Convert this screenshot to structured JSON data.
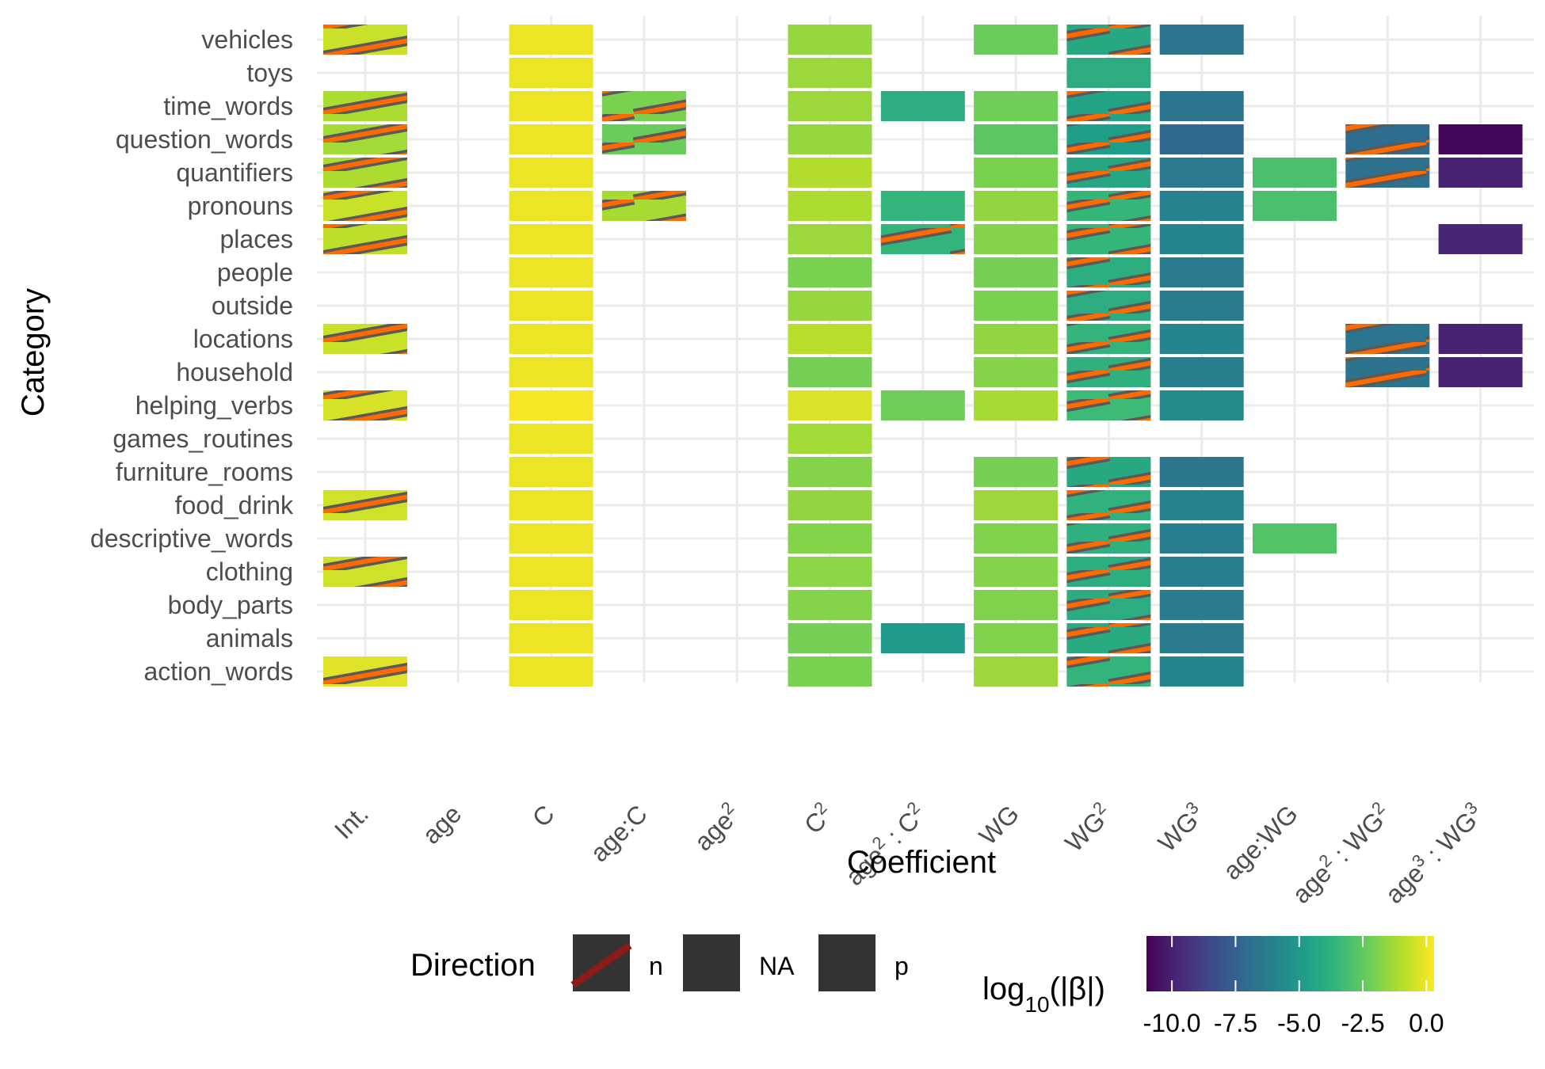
{
  "chart_data": {
    "type": "heatmap",
    "xlabel": "Coefficient",
    "ylabel": "Category",
    "x_categories": [
      {
        "key": "int",
        "parts": [
          {
            "t": "Int."
          }
        ]
      },
      {
        "key": "age",
        "parts": [
          {
            "t": "age"
          }
        ]
      },
      {
        "key": "C",
        "parts": [
          {
            "t": "C"
          }
        ]
      },
      {
        "key": "age:C",
        "parts": [
          {
            "t": "age:C"
          }
        ]
      },
      {
        "key": "age2",
        "parts": [
          {
            "t": "age"
          },
          {
            "t": "2",
            "sup": true
          }
        ]
      },
      {
        "key": "C2",
        "parts": [
          {
            "t": "C"
          },
          {
            "t": "2",
            "sup": true
          }
        ]
      },
      {
        "key": "age2:C2",
        "parts": [
          {
            "t": "age"
          },
          {
            "t": "2",
            "sup": true
          },
          {
            "t": " : C"
          },
          {
            "t": "2",
            "sup": true
          }
        ]
      },
      {
        "key": "WG",
        "parts": [
          {
            "t": "WG"
          }
        ]
      },
      {
        "key": "WG2",
        "parts": [
          {
            "t": "WG"
          },
          {
            "t": "2",
            "sup": true
          }
        ]
      },
      {
        "key": "WG3",
        "parts": [
          {
            "t": "WG"
          },
          {
            "t": "3",
            "sup": true
          }
        ]
      },
      {
        "key": "age:WG",
        "parts": [
          {
            "t": "age:WG"
          }
        ]
      },
      {
        "key": "age2:WG2",
        "parts": [
          {
            "t": "age"
          },
          {
            "t": "2",
            "sup": true
          },
          {
            "t": " : WG"
          },
          {
            "t": "2",
            "sup": true
          }
        ]
      },
      {
        "key": "age3:WG3",
        "parts": [
          {
            "t": "age"
          },
          {
            "t": "3",
            "sup": true
          },
          {
            "t": " : WG"
          },
          {
            "t": "3",
            "sup": true
          }
        ]
      }
    ],
    "y_categories": [
      "vehicles",
      "toys",
      "time_words",
      "question_words",
      "quantifiers",
      "pronouns",
      "places",
      "people",
      "outside",
      "locations",
      "household",
      "helping_verbs",
      "games_routines",
      "furniture_rooms",
      "food_drink",
      "descriptive_words",
      "clothing",
      "body_parts",
      "animals",
      "action_words"
    ],
    "color_scale": {
      "name": "viridis",
      "domain": [
        -11,
        0.3
      ],
      "stops": [
        "#440154",
        "#482878",
        "#3e4989",
        "#31688e",
        "#26828e",
        "#1f9e89",
        "#35b779",
        "#6ece58",
        "#b5de2b",
        "#fde725"
      ]
    },
    "cells": [
      {
        "y": "vehicles",
        "x": "int",
        "v": -0.6,
        "dir": "n"
      },
      {
        "y": "vehicles",
        "x": "C",
        "v": 0,
        "dir": "p"
      },
      {
        "y": "vehicles",
        "x": "C2",
        "v": -1.5,
        "dir": "p"
      },
      {
        "y": "vehicles",
        "x": "WG",
        "v": -2.3,
        "dir": "p"
      },
      {
        "y": "vehicles",
        "x": "WG2",
        "v": -4.2,
        "dir": "n"
      },
      {
        "y": "vehicles",
        "x": "WG3",
        "v": -6.6,
        "dir": "p"
      },
      {
        "y": "toys",
        "x": "C",
        "v": 0,
        "dir": "p"
      },
      {
        "y": "toys",
        "x": "C2",
        "v": -1.4,
        "dir": "p"
      },
      {
        "y": "toys",
        "x": "WG2",
        "v": -4.0,
        "dir": "p"
      },
      {
        "y": "time_words",
        "x": "int",
        "v": -1.1,
        "dir": "n"
      },
      {
        "y": "time_words",
        "x": "C",
        "v": 0,
        "dir": "p"
      },
      {
        "y": "time_words",
        "x": "age:C",
        "v": -2.0,
        "dir": "n"
      },
      {
        "y": "time_words",
        "x": "C2",
        "v": -1.4,
        "dir": "p"
      },
      {
        "y": "time_words",
        "x": "age2:C2",
        "v": -4.0,
        "dir": "p"
      },
      {
        "y": "time_words",
        "x": "WG",
        "v": -2.2,
        "dir": "p"
      },
      {
        "y": "time_words",
        "x": "WG2",
        "v": -4.5,
        "dir": "n"
      },
      {
        "y": "time_words",
        "x": "WG3",
        "v": -6.6,
        "dir": "p"
      },
      {
        "y": "question_words",
        "x": "int",
        "v": -1.3,
        "dir": "n"
      },
      {
        "y": "question_words",
        "x": "C",
        "v": 0,
        "dir": "p"
      },
      {
        "y": "question_words",
        "x": "age:C",
        "v": -2.3,
        "dir": "n"
      },
      {
        "y": "question_words",
        "x": "C2",
        "v": -1.5,
        "dir": "p"
      },
      {
        "y": "question_words",
        "x": "WG",
        "v": -2.6,
        "dir": "p"
      },
      {
        "y": "question_words",
        "x": "WG2",
        "v": -4.7,
        "dir": "n"
      },
      {
        "y": "question_words",
        "x": "WG3",
        "v": -7.2,
        "dir": "p"
      },
      {
        "y": "question_words",
        "x": "age2:WG2",
        "v": -7.0,
        "dir": "n"
      },
      {
        "y": "question_words",
        "x": "age3:WG3",
        "v": -10.8,
        "dir": "p"
      },
      {
        "y": "quantifiers",
        "x": "int",
        "v": -1.1,
        "dir": "n"
      },
      {
        "y": "quantifiers",
        "x": "C",
        "v": 0,
        "dir": "p"
      },
      {
        "y": "quantifiers",
        "x": "C2",
        "v": -1.0,
        "dir": "p"
      },
      {
        "y": "quantifiers",
        "x": "WG",
        "v": -2.0,
        "dir": "p"
      },
      {
        "y": "quantifiers",
        "x": "WG2",
        "v": -4.3,
        "dir": "n"
      },
      {
        "y": "quantifiers",
        "x": "WG3",
        "v": -6.4,
        "dir": "p"
      },
      {
        "y": "quantifiers",
        "x": "age:WG",
        "v": -3.0,
        "dir": "p"
      },
      {
        "y": "quantifiers",
        "x": "age2:WG2",
        "v": -6.8,
        "dir": "n"
      },
      {
        "y": "quantifiers",
        "x": "age3:WG3",
        "v": -9.9,
        "dir": "p"
      },
      {
        "y": "pronouns",
        "x": "int",
        "v": -0.6,
        "dir": "n"
      },
      {
        "y": "pronouns",
        "x": "C",
        "v": 0,
        "dir": "p"
      },
      {
        "y": "pronouns",
        "x": "age:C",
        "v": -1.2,
        "dir": "n"
      },
      {
        "y": "pronouns",
        "x": "C2",
        "v": -1.1,
        "dir": "p"
      },
      {
        "y": "pronouns",
        "x": "age2:C2",
        "v": -3.6,
        "dir": "p"
      },
      {
        "y": "pronouns",
        "x": "WG",
        "v": -1.6,
        "dir": "p"
      },
      {
        "y": "pronouns",
        "x": "WG2",
        "v": -3.5,
        "dir": "n"
      },
      {
        "y": "pronouns",
        "x": "WG3",
        "v": -6.0,
        "dir": "p"
      },
      {
        "y": "pronouns",
        "x": "age:WG",
        "v": -3.0,
        "dir": "p"
      },
      {
        "y": "places",
        "x": "int",
        "v": -0.8,
        "dir": "n"
      },
      {
        "y": "places",
        "x": "C",
        "v": 0,
        "dir": "p"
      },
      {
        "y": "places",
        "x": "C2",
        "v": -1.4,
        "dir": "p"
      },
      {
        "y": "places",
        "x": "age2:C2",
        "v": -3.6,
        "dir": "n"
      },
      {
        "y": "places",
        "x": "WG",
        "v": -1.8,
        "dir": "p"
      },
      {
        "y": "places",
        "x": "WG2",
        "v": -3.5,
        "dir": "n"
      },
      {
        "y": "places",
        "x": "WG3",
        "v": -5.9,
        "dir": "p"
      },
      {
        "y": "places",
        "x": "age3:WG3",
        "v": -9.8,
        "dir": "p"
      },
      {
        "y": "people",
        "x": "C",
        "v": 0,
        "dir": "p"
      },
      {
        "y": "people",
        "x": "C2",
        "v": -2.0,
        "dir": "p"
      },
      {
        "y": "people",
        "x": "WG",
        "v": -2.1,
        "dir": "p"
      },
      {
        "y": "people",
        "x": "WG2",
        "v": -3.9,
        "dir": "n"
      },
      {
        "y": "people",
        "x": "WG3",
        "v": -6.3,
        "dir": "p"
      },
      {
        "y": "outside",
        "x": "C",
        "v": 0,
        "dir": "p"
      },
      {
        "y": "outside",
        "x": "C2",
        "v": -1.5,
        "dir": "p"
      },
      {
        "y": "outside",
        "x": "WG",
        "v": -2.0,
        "dir": "p"
      },
      {
        "y": "outside",
        "x": "WG2",
        "v": -4.0,
        "dir": "n"
      },
      {
        "y": "outside",
        "x": "WG3",
        "v": -6.3,
        "dir": "p"
      },
      {
        "y": "locations",
        "x": "int",
        "v": -0.6,
        "dir": "n"
      },
      {
        "y": "locations",
        "x": "C",
        "v": 0,
        "dir": "p"
      },
      {
        "y": "locations",
        "x": "C2",
        "v": -0.9,
        "dir": "p"
      },
      {
        "y": "locations",
        "x": "WG",
        "v": -1.6,
        "dir": "p"
      },
      {
        "y": "locations",
        "x": "WG2",
        "v": -3.6,
        "dir": "n"
      },
      {
        "y": "locations",
        "x": "WG3",
        "v": -5.9,
        "dir": "p"
      },
      {
        "y": "locations",
        "x": "age2:WG2",
        "v": -6.6,
        "dir": "n"
      },
      {
        "y": "locations",
        "x": "age3:WG3",
        "v": -9.9,
        "dir": "p"
      },
      {
        "y": "household",
        "x": "C",
        "v": 0,
        "dir": "p"
      },
      {
        "y": "household",
        "x": "C2",
        "v": -2.1,
        "dir": "p"
      },
      {
        "y": "household",
        "x": "WG",
        "v": -1.8,
        "dir": "p"
      },
      {
        "y": "household",
        "x": "WG2",
        "v": -3.8,
        "dir": "n"
      },
      {
        "y": "household",
        "x": "WG3",
        "v": -6.1,
        "dir": "p"
      },
      {
        "y": "household",
        "x": "age2:WG2",
        "v": -6.7,
        "dir": "n"
      },
      {
        "y": "household",
        "x": "age3:WG3",
        "v": -9.9,
        "dir": "p"
      },
      {
        "y": "helping_verbs",
        "x": "int",
        "v": -0.4,
        "dir": "n"
      },
      {
        "y": "helping_verbs",
        "x": "C",
        "v": 0.2,
        "dir": "p"
      },
      {
        "y": "helping_verbs",
        "x": "C2",
        "v": -0.3,
        "dir": "p"
      },
      {
        "y": "helping_verbs",
        "x": "age2:C2",
        "v": -2.2,
        "dir": "p"
      },
      {
        "y": "helping_verbs",
        "x": "WG",
        "v": -1.2,
        "dir": "p"
      },
      {
        "y": "helping_verbs",
        "x": "WG2",
        "v": -3.3,
        "dir": "n"
      },
      {
        "y": "helping_verbs",
        "x": "WG3",
        "v": -5.6,
        "dir": "p"
      },
      {
        "y": "games_routines",
        "x": "C",
        "v": 0,
        "dir": "p"
      },
      {
        "y": "games_routines",
        "x": "C2",
        "v": -1.3,
        "dir": "p"
      },
      {
        "y": "furniture_rooms",
        "x": "C",
        "v": 0,
        "dir": "p"
      },
      {
        "y": "furniture_rooms",
        "x": "C2",
        "v": -1.8,
        "dir": "p"
      },
      {
        "y": "furniture_rooms",
        "x": "WG",
        "v": -2.1,
        "dir": "p"
      },
      {
        "y": "furniture_rooms",
        "x": "WG2",
        "v": -4.2,
        "dir": "n"
      },
      {
        "y": "furniture_rooms",
        "x": "WG3",
        "v": -6.5,
        "dir": "p"
      },
      {
        "y": "food_drink",
        "x": "int",
        "v": -0.5,
        "dir": "n"
      },
      {
        "y": "food_drink",
        "x": "C",
        "v": 0,
        "dir": "p"
      },
      {
        "y": "food_drink",
        "x": "C2",
        "v": -1.6,
        "dir": "p"
      },
      {
        "y": "food_drink",
        "x": "WG",
        "v": -1.4,
        "dir": "p"
      },
      {
        "y": "food_drink",
        "x": "WG2",
        "v": -3.7,
        "dir": "n"
      },
      {
        "y": "food_drink",
        "x": "WG3",
        "v": -6.0,
        "dir": "p"
      },
      {
        "y": "descriptive_words",
        "x": "C",
        "v": 0,
        "dir": "p"
      },
      {
        "y": "descriptive_words",
        "x": "C2",
        "v": -1.8,
        "dir": "p"
      },
      {
        "y": "descriptive_words",
        "x": "WG",
        "v": -1.9,
        "dir": "p"
      },
      {
        "y": "descriptive_words",
        "x": "WG2",
        "v": -3.8,
        "dir": "n"
      },
      {
        "y": "descriptive_words",
        "x": "WG3",
        "v": -6.2,
        "dir": "p"
      },
      {
        "y": "descriptive_words",
        "x": "age:WG",
        "v": -2.8,
        "dir": "p"
      },
      {
        "y": "clothing",
        "x": "int",
        "v": -0.5,
        "dir": "n"
      },
      {
        "y": "clothing",
        "x": "C",
        "v": 0,
        "dir": "p"
      },
      {
        "y": "clothing",
        "x": "C2",
        "v": -1.7,
        "dir": "p"
      },
      {
        "y": "clothing",
        "x": "WG",
        "v": -1.8,
        "dir": "p"
      },
      {
        "y": "clothing",
        "x": "WG2",
        "v": -3.9,
        "dir": "n"
      },
      {
        "y": "clothing",
        "x": "WG3",
        "v": -6.2,
        "dir": "p"
      },
      {
        "y": "body_parts",
        "x": "C",
        "v": 0,
        "dir": "p"
      },
      {
        "y": "body_parts",
        "x": "C2",
        "v": -1.8,
        "dir": "p"
      },
      {
        "y": "body_parts",
        "x": "WG",
        "v": -1.9,
        "dir": "p"
      },
      {
        "y": "body_parts",
        "x": "WG2",
        "v": -4.0,
        "dir": "n"
      },
      {
        "y": "body_parts",
        "x": "WG3",
        "v": -6.3,
        "dir": "p"
      },
      {
        "y": "animals",
        "x": "C",
        "v": 0,
        "dir": "p"
      },
      {
        "y": "animals",
        "x": "C2",
        "v": -2.1,
        "dir": "p"
      },
      {
        "y": "animals",
        "x": "age2:C2",
        "v": -4.9,
        "dir": "p"
      },
      {
        "y": "animals",
        "x": "WG",
        "v": -1.9,
        "dir": "p"
      },
      {
        "y": "animals",
        "x": "WG2",
        "v": -4.1,
        "dir": "n"
      },
      {
        "y": "animals",
        "x": "WG3",
        "v": -6.3,
        "dir": "p"
      },
      {
        "y": "action_words",
        "x": "int",
        "v": -0.2,
        "dir": "n"
      },
      {
        "y": "action_words",
        "x": "C",
        "v": 0,
        "dir": "p"
      },
      {
        "y": "action_words",
        "x": "C2",
        "v": -2.0,
        "dir": "p"
      },
      {
        "y": "action_words",
        "x": "WG",
        "v": -1.4,
        "dir": "p"
      },
      {
        "y": "action_words",
        "x": "WG2",
        "v": -3.6,
        "dir": "n"
      },
      {
        "y": "action_words",
        "x": "WG3",
        "v": -5.9,
        "dir": "p"
      }
    ],
    "legend_direction": {
      "title": "Direction",
      "items": [
        {
          "label": "n",
          "pattern": "stripe"
        },
        {
          "label": "NA",
          "pattern": "none"
        },
        {
          "label": "p",
          "pattern": "none"
        }
      ]
    },
    "legend_color": {
      "title_parts": [
        {
          "t": "log"
        },
        {
          "t": "10",
          "sub": true
        },
        {
          "t": "(|β|)"
        }
      ],
      "ticks": [
        -10.0,
        -7.5,
        -5.0,
        -2.5,
        0.0
      ],
      "tick_labels": [
        "-10.0",
        "-7.5",
        "-5.0",
        "-2.5",
        "0.0"
      ]
    },
    "grid": true,
    "legend_position": "bottom"
  }
}
